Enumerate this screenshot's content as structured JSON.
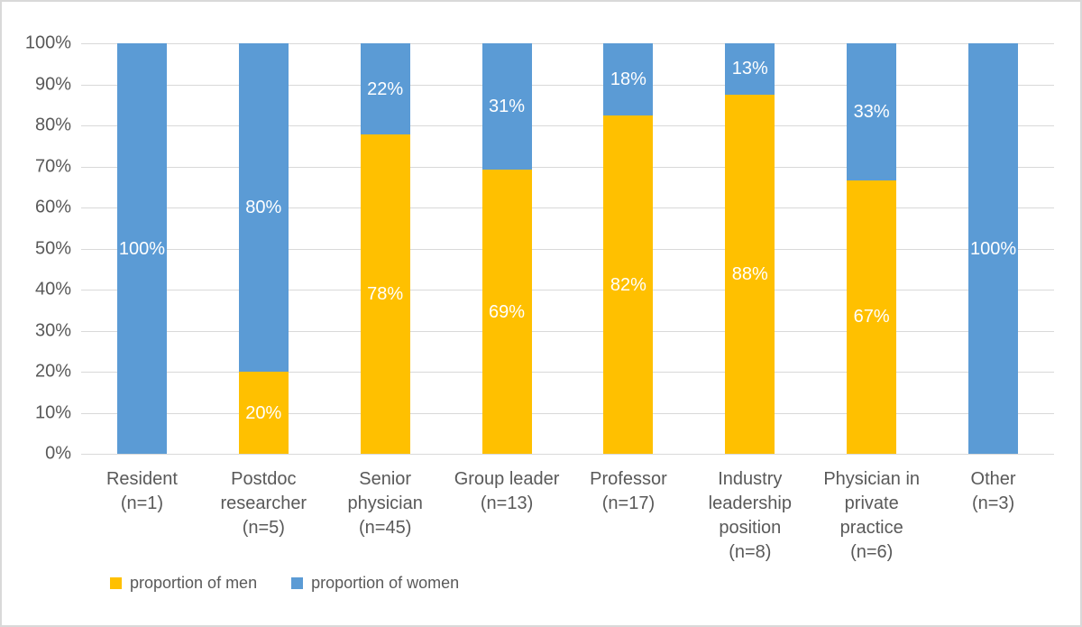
{
  "chart_data": {
    "type": "bar",
    "stacked": true,
    "orientation": "vertical",
    "title": "",
    "categories": [
      "Resident\n(n=1)",
      "Postdoc\nresearcher\n(n=5)",
      "Senior\nphysician\n(n=45)",
      "Group leader\n(n=13)",
      "Professor\n(n=17)",
      "Industry\nleadership\nposition\n(n=8)",
      "Physician in\nprivate\npractice\n(n=6)",
      "Other\n(n=3)"
    ],
    "series": [
      {
        "name": "proportion of men",
        "color": "#FFC000",
        "values": [
          0,
          20,
          77.8,
          69.2,
          82.4,
          87.5,
          66.7,
          0
        ],
        "labels": [
          "",
          "20%",
          "78%",
          "69%",
          "82%",
          "88%",
          "67%",
          ""
        ]
      },
      {
        "name": "proportion of women",
        "color": "#5B9BD5",
        "values": [
          100,
          80,
          22.2,
          30.8,
          17.6,
          12.5,
          33.3,
          100
        ],
        "labels": [
          "100%",
          "80%",
          "22%",
          "31%",
          "18%",
          "13%",
          "33%",
          "100%"
        ]
      }
    ],
    "y_axis": {
      "min": 0,
      "max": 100,
      "tick_step": 10,
      "ticks": [
        "0%",
        "10%",
        "20%",
        "30%",
        "40%",
        "50%",
        "60%",
        "70%",
        "80%",
        "90%",
        "100%"
      ],
      "grid": true
    },
    "legend": {
      "position": "bottom-left",
      "entries": [
        {
          "label": "proportion of men",
          "color": "#FFC000"
        },
        {
          "label": "proportion of women",
          "color": "#5B9BD5"
        }
      ]
    },
    "colors": {
      "men": "#FFC000",
      "women": "#5B9BD5",
      "axis_text": "#595959",
      "gridline": "#D9D9D9",
      "data_label_text": "#FFFFFF",
      "border": "#D9D9D9",
      "background": "#FFFFFF"
    }
  }
}
